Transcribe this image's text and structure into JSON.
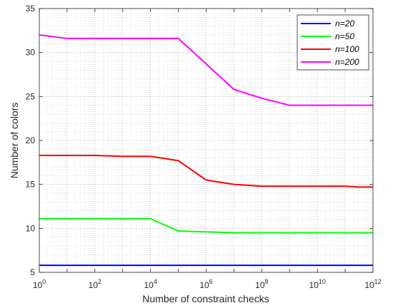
{
  "chart_data": {
    "type": "line",
    "xlabel": "Number of constraint checks",
    "ylabel": "Number of colors",
    "xscale": "log",
    "xlim": [
      1,
      1000000000000
    ],
    "ylim": [
      5,
      35
    ],
    "grid": "on (major and minor)",
    "legend_position": "top-right",
    "x_tick_labels": [
      {
        "base": "10",
        "exp": "0"
      },
      {
        "base": "10",
        "exp": "2"
      },
      {
        "base": "10",
        "exp": "4"
      },
      {
        "base": "10",
        "exp": "6"
      },
      {
        "base": "10",
        "exp": "8"
      },
      {
        "base": "10",
        "exp": "10"
      },
      {
        "base": "10",
        "exp": "12"
      }
    ],
    "y_tick_labels": [
      "5",
      "10",
      "15",
      "20",
      "25",
      "30",
      "35"
    ],
    "series": [
      {
        "name": "n=20",
        "color": "#0000ff",
        "x": [
          1,
          1000000000000
        ],
        "y": [
          5.8,
          5.8
        ]
      },
      {
        "name": "n=50",
        "color": "#00ff00",
        "x": [
          1,
          10,
          100,
          1000,
          10000,
          100000,
          1000000,
          10000000,
          100000000,
          1000000000,
          10000000000,
          100000000000,
          1000000000000
        ],
        "y": [
          11.1,
          11.1,
          11.1,
          11.1,
          11.1,
          9.7,
          9.6,
          9.5,
          9.5,
          9.5,
          9.5,
          9.5,
          9.5
        ]
      },
      {
        "name": "n=100",
        "color": "#ff0000",
        "x": [
          1,
          100,
          1000,
          10000,
          100000,
          1000000,
          10000000,
          100000000,
          1000000000,
          10000000000,
          100000000000,
          300000000000,
          1000000000000
        ],
        "y": [
          18.3,
          18.3,
          18.2,
          18.2,
          17.7,
          15.5,
          15.0,
          14.8,
          14.8,
          14.8,
          14.8,
          14.7,
          14.7
        ]
      },
      {
        "name": "n=200",
        "color": "#ff00ff",
        "x": [
          1,
          10,
          100,
          1000,
          10000,
          100000,
          10000000,
          100000000,
          1000000000,
          10000000000,
          100000000000,
          1000000000000
        ],
        "y": [
          32.0,
          31.6,
          31.6,
          31.6,
          31.6,
          31.6,
          25.8,
          24.8,
          24.0,
          24.0,
          24.0,
          24.0
        ]
      }
    ]
  }
}
